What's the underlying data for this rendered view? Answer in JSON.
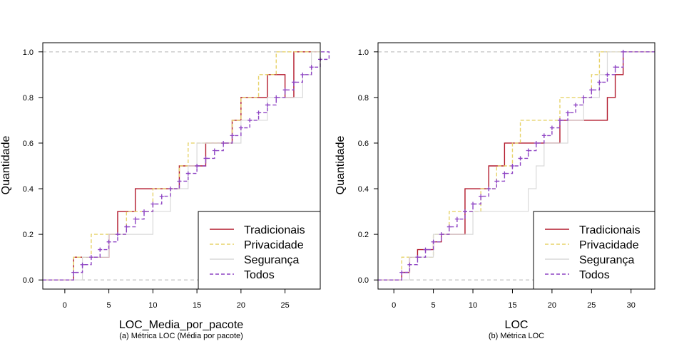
{
  "chart_data": [
    {
      "type": "line",
      "chart_style": "empirical-cdf-step",
      "xlabel": "LOC_Media_por_pacote",
      "ylabel": "Quantidade",
      "caption": "(a) Métrica LOC (Média por pacote)",
      "xlim": [
        -2.5,
        29
      ],
      "ylim": [
        -0.04,
        1.04
      ],
      "x_ticks": [
        0,
        5,
        10,
        15,
        20,
        25
      ],
      "x_tick_labels": [
        "0",
        "5",
        "10",
        "15",
        "20",
        "25"
      ],
      "y_ticks": [
        0,
        0.2,
        0.4,
        0.6,
        0.8,
        1
      ],
      "y_tick_labels": [
        "0.0",
        "0.2",
        "0.4",
        "0.6",
        "0.8",
        "1.0"
      ],
      "legend_position": "bottom-right",
      "series": [
        {
          "name": "Tradicionais",
          "color": "#b2182b",
          "dash": "solid",
          "markers": false,
          "steps": [
            [
              1,
              0.1
            ],
            [
              2,
              0.1
            ],
            [
              5,
              0.2
            ],
            [
              6,
              0.3
            ],
            [
              7,
              0.3
            ],
            [
              8,
              0.4
            ],
            [
              12,
              0.4
            ],
            [
              13,
              0.5
            ],
            [
              15,
              0.5
            ],
            [
              16,
              0.6
            ],
            [
              18,
              0.6
            ],
            [
              19,
              0.7
            ],
            [
              20,
              0.8
            ],
            [
              21,
              0.8
            ],
            [
              22,
              0.8
            ],
            [
              23,
              0.9
            ],
            [
              25,
              0.8
            ],
            [
              26,
              1.0
            ]
          ]
        },
        {
          "name": "Privacidade",
          "color": "#e7d36a",
          "dash": "dashed",
          "markers": false,
          "steps": [
            [
              1,
              0.1
            ],
            [
              3,
              0.2
            ],
            [
              6,
              0.2
            ],
            [
              7,
              0.3
            ],
            [
              9,
              0.3
            ],
            [
              10,
              0.4
            ],
            [
              11,
              0.4
            ],
            [
              13,
              0.5
            ],
            [
              14,
              0.6
            ],
            [
              17,
              0.6
            ],
            [
              19,
              0.7
            ],
            [
              20,
              0.8
            ],
            [
              22,
              0.9
            ],
            [
              24,
              1.0
            ]
          ]
        },
        {
          "name": "Segurança",
          "color": "#d9d9d9",
          "dash": "solid",
          "markers": false,
          "steps": [
            [
              2,
              0.1
            ],
            [
              4,
              0.1
            ],
            [
              5,
              0.2
            ],
            [
              6,
              0.2
            ],
            [
              8,
              0.2
            ],
            [
              9,
              0.2
            ],
            [
              10,
              0.3
            ],
            [
              11,
              0.3
            ],
            [
              12,
              0.4
            ],
            [
              14,
              0.5
            ],
            [
              15,
              0.6
            ],
            [
              17,
              0.6
            ],
            [
              19,
              0.6
            ],
            [
              20,
              0.7
            ],
            [
              22,
              0.7
            ],
            [
              23,
              0.8
            ],
            [
              25,
              0.8
            ],
            [
              27,
              0.9
            ],
            [
              28,
              1.0
            ]
          ]
        },
        {
          "name": "Todos",
          "color": "#8e44c4",
          "dash": "dashed",
          "markers": true,
          "steps": [
            [
              1,
              0.033
            ],
            [
              2,
              0.067
            ],
            [
              3,
              0.1
            ],
            [
              4,
              0.133
            ],
            [
              5,
              0.167
            ],
            [
              6,
              0.2
            ],
            [
              7,
              0.233
            ],
            [
              8,
              0.267
            ],
            [
              9,
              0.3
            ],
            [
              10,
              0.333
            ],
            [
              11,
              0.367
            ],
            [
              12,
              0.4
            ],
            [
              13,
              0.433
            ],
            [
              14,
              0.467
            ],
            [
              15,
              0.5
            ],
            [
              16,
              0.533
            ],
            [
              17,
              0.567
            ],
            [
              18,
              0.6
            ],
            [
              19,
              0.633
            ],
            [
              20,
              0.667
            ],
            [
              21,
              0.7
            ],
            [
              22,
              0.733
            ],
            [
              23,
              0.767
            ],
            [
              24,
              0.8
            ],
            [
              25,
              0.833
            ],
            [
              26,
              0.867
            ],
            [
              27,
              0.9
            ],
            [
              28,
              0.933
            ],
            [
              29,
              0.967
            ],
            [
              30,
              1.0
            ]
          ]
        }
      ]
    },
    {
      "type": "line",
      "chart_style": "empirical-cdf-step",
      "xlabel": "LOC",
      "ylabel": "Quantidade",
      "caption": "(b) Métrica LOC",
      "xlim": [
        -2,
        33
      ],
      "ylim": [
        -0.04,
        1.04
      ],
      "x_ticks": [
        0,
        5,
        10,
        15,
        20,
        25,
        30
      ],
      "x_tick_labels": [
        "0",
        "5",
        "10",
        "15",
        "20",
        "25",
        "30"
      ],
      "y_ticks": [
        0,
        0.2,
        0.4,
        0.6,
        0.8,
        1
      ],
      "y_tick_labels": [
        "0.0",
        "0.2",
        "0.4",
        "0.6",
        "0.8",
        "1.0"
      ],
      "legend_position": "bottom-right",
      "series": [
        {
          "name": "Tradicionais",
          "color": "#b2182b",
          "dash": "solid",
          "markers": false,
          "steps": [
            [
              1,
              0.033
            ],
            [
              2,
              0.1
            ],
            [
              3,
              0.133
            ],
            [
              5,
              0.167
            ],
            [
              6,
              0.2
            ],
            [
              9,
              0.4
            ],
            [
              10,
              0.4
            ],
            [
              12,
              0.5
            ],
            [
              13,
              0.5
            ],
            [
              14,
              0.6
            ],
            [
              18,
              0.6
            ],
            [
              21,
              0.7
            ],
            [
              25,
              0.7
            ],
            [
              27,
              0.8
            ],
            [
              28,
              0.9
            ],
            [
              29,
              1.0
            ]
          ]
        },
        {
          "name": "Privacidade",
          "color": "#e7d36a",
          "dash": "dashed",
          "markers": false,
          "steps": [
            [
              1,
              0.1
            ],
            [
              3,
              0.1
            ],
            [
              5,
              0.2
            ],
            [
              7,
              0.3
            ],
            [
              9,
              0.3
            ],
            [
              11,
              0.4
            ],
            [
              13,
              0.5
            ],
            [
              15,
              0.6
            ],
            [
              16,
              0.7
            ],
            [
              20,
              0.7
            ],
            [
              21,
              0.8
            ],
            [
              23,
              0.8
            ],
            [
              25,
              0.9
            ],
            [
              26,
              1.0
            ]
          ]
        },
        {
          "name": "Segurança",
          "color": "#d9d9d9",
          "dash": "solid",
          "markers": false,
          "steps": [
            [
              2,
              0.1
            ],
            [
              4,
              0.1
            ],
            [
              5,
              0.2
            ],
            [
              6,
              0.2
            ],
            [
              8,
              0.2
            ],
            [
              9,
              0.2
            ],
            [
              10,
              0.3
            ],
            [
              17,
              0.4
            ],
            [
              18,
              0.5
            ],
            [
              19,
              0.6
            ],
            [
              22,
              0.7
            ],
            [
              24,
              0.8
            ],
            [
              26,
              0.9
            ],
            [
              27,
              1.0
            ]
          ]
        },
        {
          "name": "Todos",
          "color": "#8e44c4",
          "dash": "dashed",
          "markers": true,
          "steps": [
            [
              1,
              0.033
            ],
            [
              2,
              0.067
            ],
            [
              3,
              0.1
            ],
            [
              4,
              0.133
            ],
            [
              5,
              0.167
            ],
            [
              6,
              0.2
            ],
            [
              7,
              0.233
            ],
            [
              8,
              0.267
            ],
            [
              9,
              0.3
            ],
            [
              10,
              0.333
            ],
            [
              11,
              0.367
            ],
            [
              12,
              0.4
            ],
            [
              13,
              0.433
            ],
            [
              14,
              0.467
            ],
            [
              15,
              0.5
            ],
            [
              16,
              0.533
            ],
            [
              17,
              0.567
            ],
            [
              18,
              0.6
            ],
            [
              19,
              0.633
            ],
            [
              20,
              0.667
            ],
            [
              21,
              0.7
            ],
            [
              22,
              0.733
            ],
            [
              23,
              0.767
            ],
            [
              24,
              0.8
            ],
            [
              25,
              0.833
            ],
            [
              26,
              0.867
            ],
            [
              27,
              0.9
            ],
            [
              28,
              0.933
            ],
            [
              29,
              1.0
            ]
          ]
        }
      ]
    }
  ]
}
